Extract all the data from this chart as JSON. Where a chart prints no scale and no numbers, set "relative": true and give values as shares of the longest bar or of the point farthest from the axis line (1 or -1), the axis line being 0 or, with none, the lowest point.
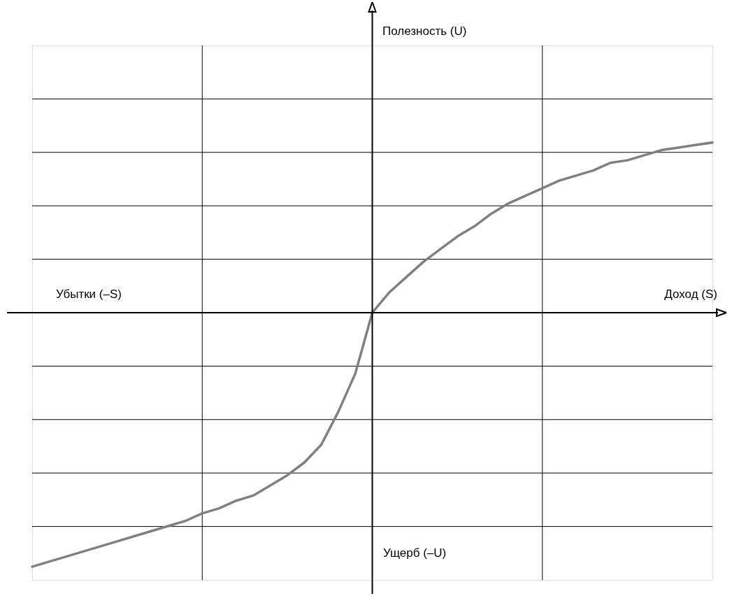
{
  "chart_data": {
    "type": "line",
    "relative": true,
    "xlabel": "Доход (S)",
    "annotations": [
      "Полезность (U)",
      "Убытки (–S)",
      "Ущерб (–U)"
    ],
    "categories": [
      null,
      null,
      null,
      null,
      null,
      null,
      null,
      null,
      null,
      null,
      null,
      null,
      null,
      null,
      null,
      null,
      null,
      null,
      null,
      null,
      null,
      null,
      null,
      null,
      null,
      null,
      null,
      null,
      null,
      null,
      null,
      null,
      null,
      null,
      null,
      null,
      null,
      null,
      null,
      null,
      null
    ],
    "series": [
      {
        "color": "#808080",
        "values": [
          -1,
          -0.98,
          -0.96,
          -0.94,
          -0.92,
          -0.9,
          -0.88,
          -0.86,
          -0.84,
          -0.82,
          -0.79,
          -0.77,
          -0.74,
          -0.72,
          -0.68,
          -0.64,
          -0.59,
          -0.52,
          -0.39,
          -0.24,
          0,
          0.08,
          0.14,
          0.2,
          0.25,
          0.3,
          0.34,
          0.39,
          0.43,
          0.46,
          0.49,
          0.52,
          0.54,
          0.56,
          0.59,
          0.6,
          0.62,
          0.64,
          0.65,
          0.66,
          0.67
        ]
      }
    ],
    "grid": true,
    "marker": "none",
    "line_style": "solid"
  }
}
